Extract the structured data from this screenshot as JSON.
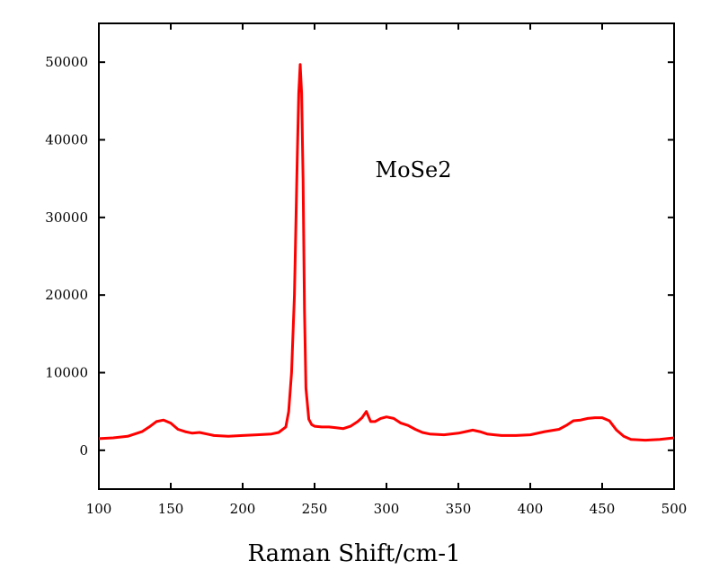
{
  "chart_data": {
    "type": "line",
    "title": "",
    "xlabel": "Raman Shift/cm-1",
    "ylabel": "",
    "xlim": [
      100,
      500
    ],
    "ylim": [
      -5000,
      55000
    ],
    "x_ticks": [
      100,
      150,
      200,
      250,
      300,
      350,
      400,
      450,
      500
    ],
    "y_ticks": [
      0,
      10000,
      20000,
      30000,
      40000,
      50000
    ],
    "grid": false,
    "legend": "none",
    "annotation": "MoSe2",
    "series": [
      {
        "color": "#ff0000",
        "x": [
          100,
          110,
          120,
          130,
          135,
          140,
          145,
          150,
          155,
          160,
          165,
          170,
          175,
          180,
          190,
          200,
          210,
          220,
          225,
          230,
          232,
          234,
          236,
          238,
          239,
          240,
          241,
          242,
          243,
          244,
          246,
          248,
          250,
          255,
          260,
          265,
          270,
          275,
          280,
          283,
          286,
          289,
          292,
          296,
          300,
          305,
          310,
          315,
          320,
          325,
          330,
          340,
          350,
          355,
          360,
          365,
          370,
          375,
          380,
          390,
          400,
          410,
          420,
          425,
          430,
          435,
          440,
          445,
          450,
          455,
          460,
          465,
          470,
          480,
          490,
          495,
          500
        ],
        "y": [
          1500,
          1600,
          1800,
          2400,
          3000,
          3700,
          3900,
          3500,
          2700,
          2400,
          2200,
          2300,
          2100,
          1900,
          1800,
          1900,
          2000,
          2100,
          2300,
          3000,
          5000,
          10000,
          20000,
          38000,
          46000,
          49700,
          46000,
          35000,
          18000,
          8000,
          4000,
          3300,
          3100,
          3000,
          3000,
          2900,
          2800,
          3100,
          3700,
          4200,
          5000,
          3700,
          3700,
          4100,
          4300,
          4100,
          3500,
          3200,
          2700,
          2300,
          2100,
          2000,
          2200,
          2400,
          2600,
          2400,
          2100,
          2000,
          1900,
          1900,
          2000,
          2400,
          2700,
          3200,
          3800,
          3900,
          4100,
          4200,
          4200,
          3800,
          2600,
          1800,
          1400,
          1300,
          1400,
          1500,
          1600
        ]
      }
    ]
  }
}
